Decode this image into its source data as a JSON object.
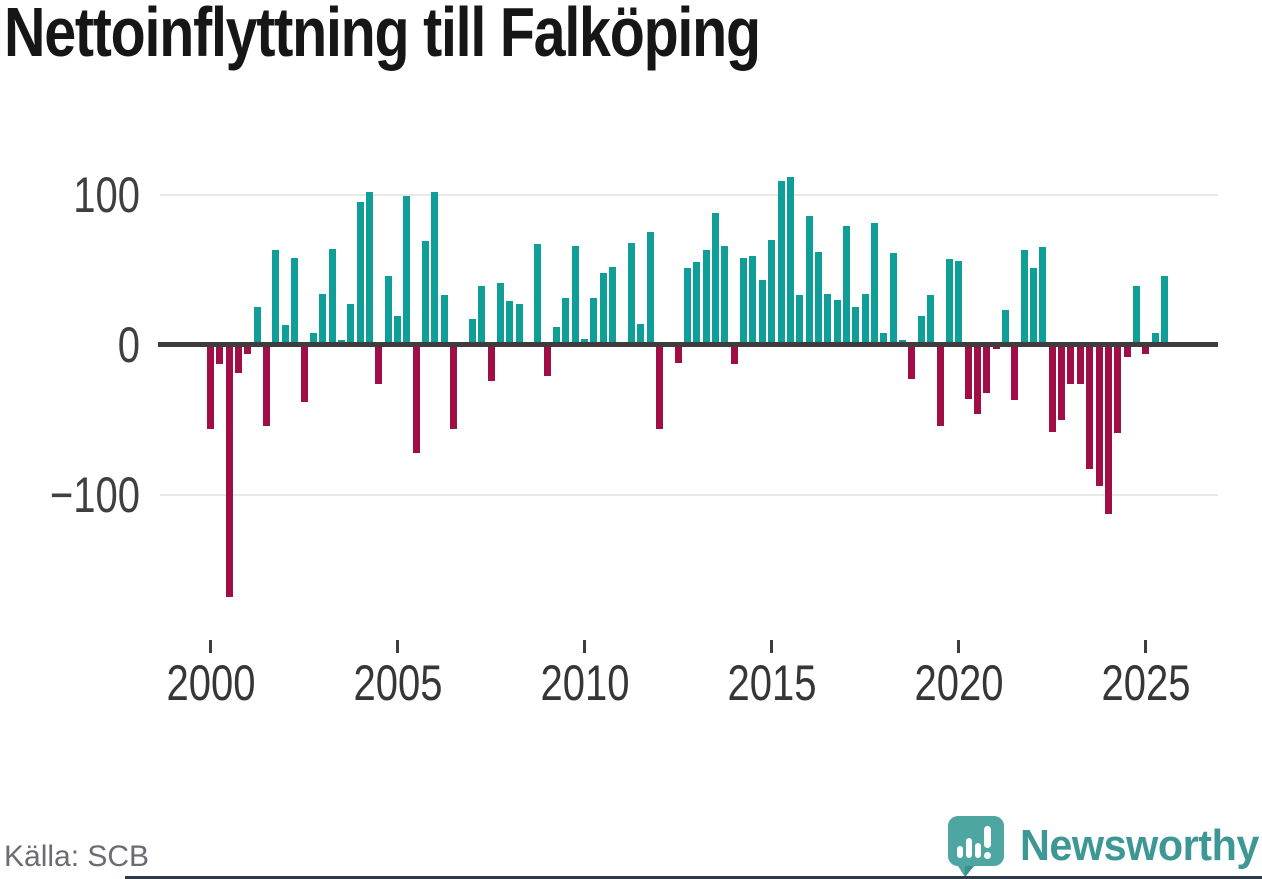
{
  "title": "Nettoinflyttning till Falköping",
  "source": "Källa: SCB",
  "branding": {
    "name": "Newsworthy",
    "wordmark_color": "#3d9795",
    "icon_color": "#4ea6a2"
  },
  "chart_data": {
    "type": "bar",
    "title": "Nettoinflyttning till Falköping",
    "frequency": "quarterly",
    "start_year": 2000,
    "start_quarter": 1,
    "values": [
      -56,
      -13,
      -168,
      -19,
      -6,
      25,
      -54,
      63,
      13,
      58,
      -38,
      8,
      34,
      64,
      3,
      27,
      95,
      102,
      -26,
      46,
      19,
      99,
      -72,
      69,
      102,
      33,
      -56,
      0,
      17,
      39,
      -24,
      41,
      29,
      27,
      2,
      67,
      -21,
      12,
      31,
      66,
      4,
      31,
      48,
      52,
      0,
      68,
      14,
      75,
      -56,
      0,
      -12,
      51,
      55,
      63,
      88,
      66,
      -13,
      58,
      59,
      43,
      70,
      109,
      112,
      33,
      86,
      62,
      34,
      30,
      79,
      25,
      34,
      81,
      8,
      61,
      3,
      -23,
      19,
      33,
      -54,
      57,
      56,
      -36,
      -46,
      -32,
      -3,
      23,
      -37,
      63,
      51,
      65,
      -58,
      -50,
      -26,
      -26,
      -83,
      -94,
      -113,
      -59,
      -8,
      39,
      -6,
      8,
      46
    ],
    "x_tick_years": [
      2000,
      2005,
      2010,
      2015,
      2020,
      2025
    ],
    "x_tick_labels": [
      "2000",
      "2005",
      "2010",
      "2015",
      "2020",
      "2025"
    ],
    "y_ticks": [
      100,
      0,
      -100
    ],
    "y_tick_labels": [
      "100",
      "0",
      "−100"
    ],
    "ylim": [
      -175,
      120
    ],
    "grid": "horizontal",
    "legend": "none",
    "colors": {
      "positive": "#0f9e98",
      "negative": "#a10d45"
    },
    "source": "Källa: SCB"
  }
}
